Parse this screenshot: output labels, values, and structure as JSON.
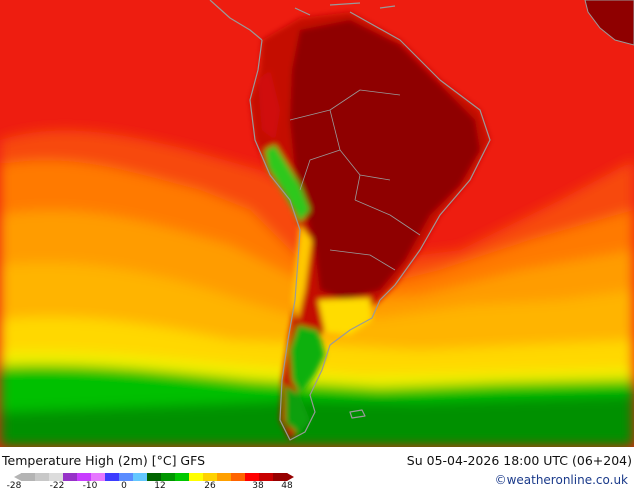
{
  "map": {
    "title": "Temperature High (2m) [°C] GFS",
    "datetime": "Su 05-04-2026 18:00 UTC (06+204)",
    "credit": "©weatheronline.co.uk"
  },
  "legend": {
    "ticks": [
      "-28",
      "-22",
      "-10",
      "0",
      "12",
      "26",
      "38",
      "48"
    ],
    "colors": [
      "#b4b4b4",
      "#c8c8c8",
      "#dcdcdc",
      "#9632c8",
      "#c83cff",
      "#e678ff",
      "#3c3cff",
      "#5a8cff",
      "#64c8ff",
      "#006400",
      "#009600",
      "#00c800",
      "#ffff00",
      "#ffd200",
      "#ffa000",
      "#ff6400",
      "#ff0000",
      "#c80000",
      "#960000"
    ]
  },
  "palette": {
    "sea_red": "#f0190f",
    "sea_orange": "#ff8c00",
    "sea_yellow": "#ffc800",
    "land_darkred": "#a00000",
    "green": "#00b400",
    "dark_green": "#008c00",
    "coast_gray": "#9a9a9a"
  }
}
